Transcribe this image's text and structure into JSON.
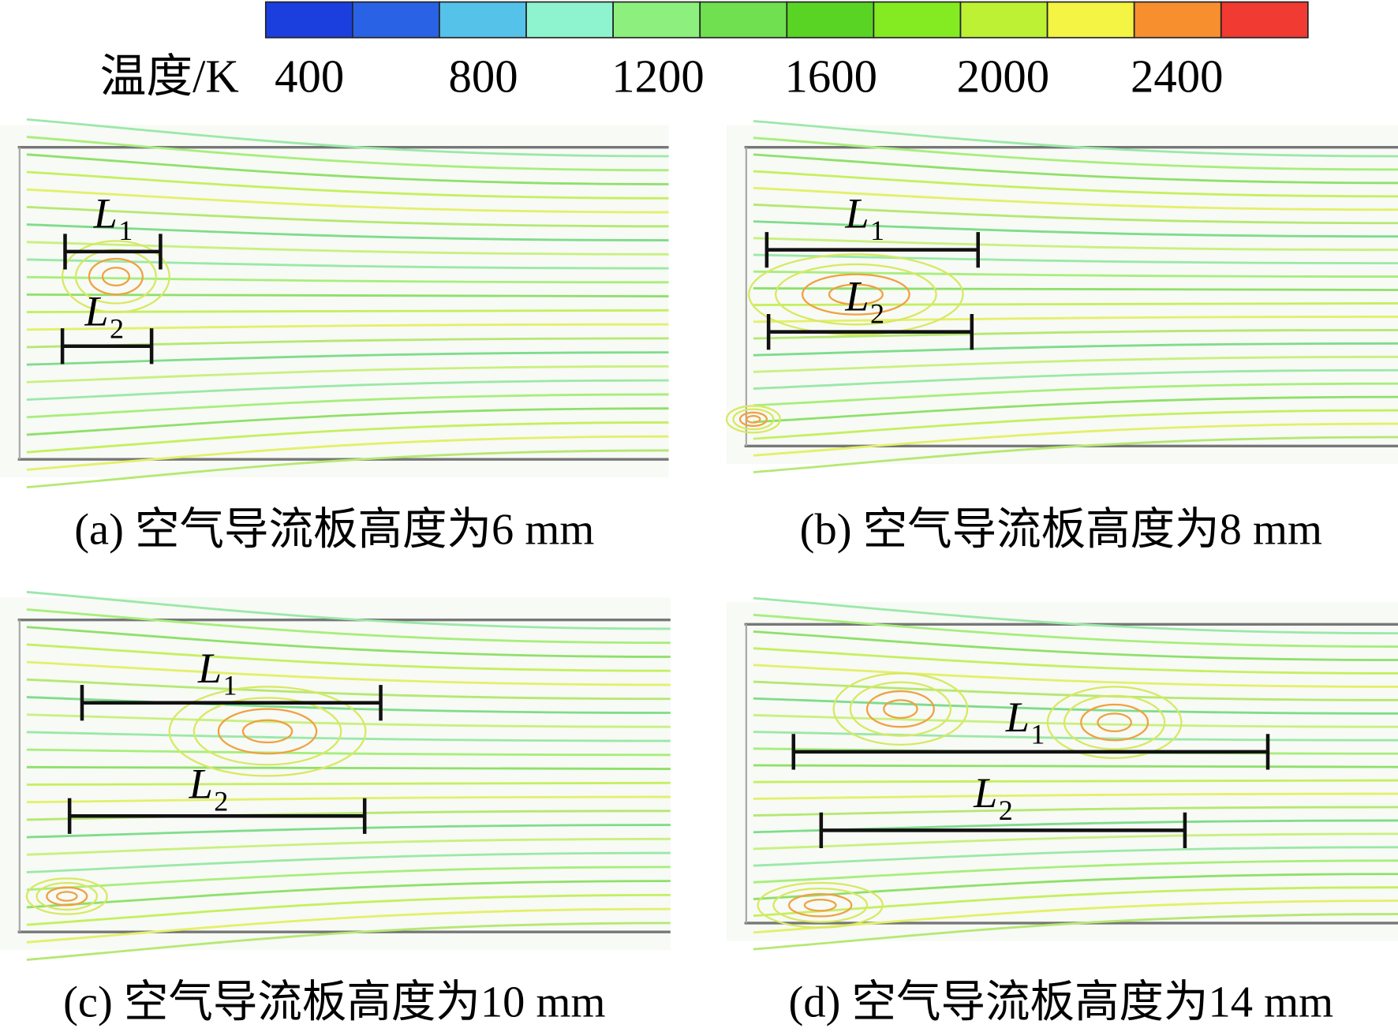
{
  "colorbar": {
    "label": "温度/K",
    "ticks": [
      "400",
      "800",
      "1200",
      "1600",
      "2000",
      "2400"
    ]
  },
  "panels": [
    {
      "caption": "(a) 空气导流板高度为6 mm",
      "l1": {
        "main": "L",
        "sub": "1"
      },
      "l2": {
        "main": "L",
        "sub": "2"
      }
    },
    {
      "caption": "(b) 空气导流板高度为8 mm",
      "l1": {
        "main": "L",
        "sub": "1"
      },
      "l2": {
        "main": "L",
        "sub": "2"
      }
    },
    {
      "caption": "(c) 空气导流板高度为10 mm",
      "l1": {
        "main": "L",
        "sub": "1"
      },
      "l2": {
        "main": "L",
        "sub": "2"
      }
    },
    {
      "caption": "(d) 空气导流板高度为14 mm",
      "l1": {
        "main": "L",
        "sub": "1"
      },
      "l2": {
        "main": "L",
        "sub": "2"
      }
    }
  ]
}
